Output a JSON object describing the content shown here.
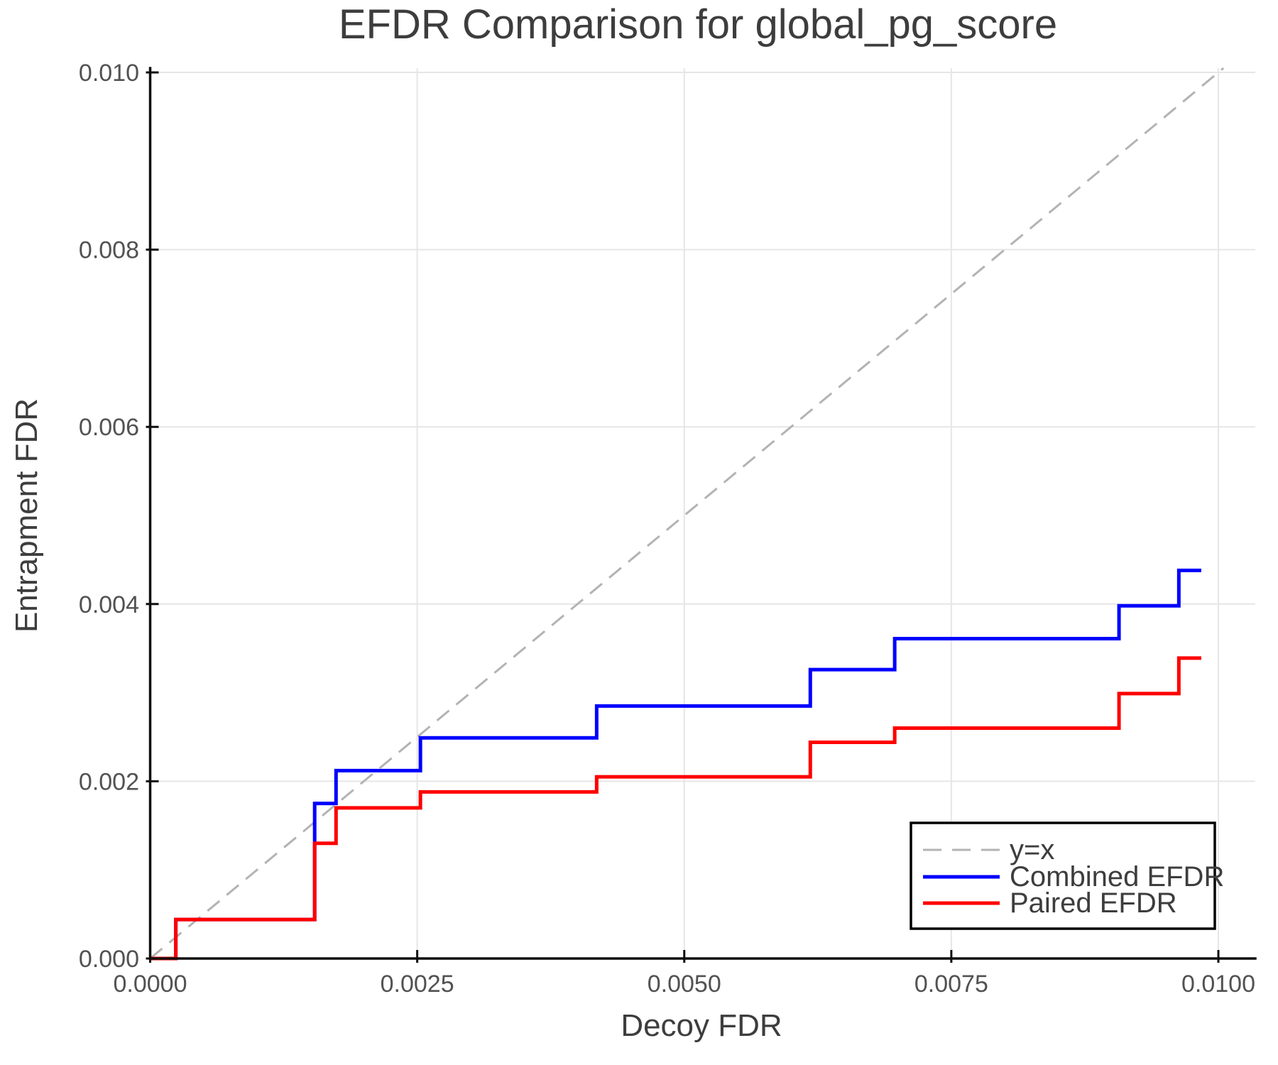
{
  "chart_data": {
    "type": "line",
    "title": "EFDR Comparison for global_pg_score",
    "xlabel": "Decoy FDR",
    "ylabel": "Entrapment FDR",
    "xlim": [
      0.0,
      0.01
    ],
    "ylim": [
      0.0,
      0.01
    ],
    "grid": true,
    "x_ticks": {
      "values": [
        0.0,
        0.0025,
        0.005,
        0.0075,
        0.01
      ],
      "labels": [
        "0.0000",
        "0.0025",
        "0.0050",
        "0.0075",
        "0.0100"
      ]
    },
    "y_ticks": {
      "values": [
        0.0,
        0.002,
        0.004,
        0.006,
        0.008,
        0.01
      ],
      "labels": [
        "0.000",
        "0.002",
        "0.004",
        "0.006",
        "0.008",
        "0.010"
      ]
    },
    "reference_line": {
      "label": "y=x",
      "from": [
        0.0,
        0.0
      ],
      "to": [
        0.01,
        0.01
      ],
      "style": "dashed",
      "color": "#b3b3b3"
    },
    "series": [
      {
        "name": "Combined EFDR",
        "color": "#0000ff",
        "step": "post",
        "x": [
          0.0,
          0.00024,
          0.00154,
          0.00174,
          0.00253,
          0.00418,
          0.00618,
          0.00697,
          0.00907,
          0.00963
        ],
        "y": [
          0.0,
          0.00044,
          0.00175,
          0.00212,
          0.00249,
          0.00285,
          0.00326,
          0.00361,
          0.00398,
          0.00438
        ],
        "x_end": 0.00984
      },
      {
        "name": "Paired EFDR",
        "color": "#ff0000",
        "step": "post",
        "x": [
          0.0,
          0.00024,
          0.00154,
          0.00174,
          0.00253,
          0.00418,
          0.00618,
          0.00697,
          0.00907,
          0.00963
        ],
        "y": [
          0.0,
          0.00044,
          0.0013,
          0.0017,
          0.00188,
          0.00205,
          0.00244,
          0.0026,
          0.00299,
          0.00339
        ],
        "x_end": 0.00984
      }
    ],
    "legend": {
      "position": "lower right",
      "items": [
        {
          "label": "y=x"
        },
        {
          "label": "Combined EFDR"
        },
        {
          "label": "Paired EFDR"
        }
      ]
    }
  },
  "colors": {
    "background": "#ffffff",
    "grid": "#e6e6e6",
    "spine": "#0f0f0f",
    "tick_label": "#525252",
    "text": "#3d3d3d",
    "combined": "#0000ff",
    "paired": "#ff0000",
    "identity": "#b3b3b3"
  }
}
